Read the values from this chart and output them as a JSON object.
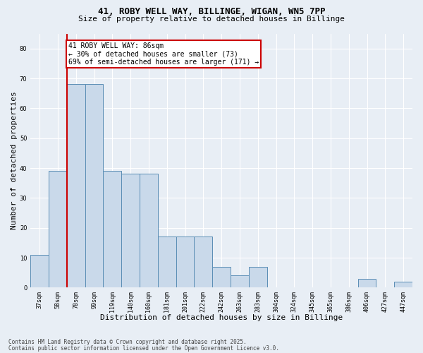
{
  "title": "41, ROBY WELL WAY, BILLINGE, WIGAN, WN5 7PP",
  "subtitle": "Size of property relative to detached houses in Billinge",
  "xlabel": "Distribution of detached houses by size in Billinge",
  "ylabel": "Number of detached properties",
  "categories": [
    "37sqm",
    "58sqm",
    "78sqm",
    "99sqm",
    "119sqm",
    "140sqm",
    "160sqm",
    "181sqm",
    "201sqm",
    "222sqm",
    "242sqm",
    "263sqm",
    "283sqm",
    "304sqm",
    "324sqm",
    "345sqm",
    "365sqm",
    "386sqm",
    "406sqm",
    "427sqm",
    "447sqm"
  ],
  "values": [
    11,
    39,
    68,
    68,
    39,
    38,
    38,
    17,
    17,
    17,
    7,
    4,
    7,
    0,
    0,
    0,
    0,
    0,
    3,
    0,
    2
  ],
  "bar_color": "#c9d9ea",
  "bar_edge_color": "#5a8db5",
  "property_line_x": 1.5,
  "annotation_text": "41 ROBY WELL WAY: 86sqm\n← 30% of detached houses are smaller (73)\n69% of semi-detached houses are larger (171) →",
  "annotation_box_color": "#ffffff",
  "annotation_box_edge_color": "#cc0000",
  "vline_color": "#cc0000",
  "background_color": "#e8eef5",
  "grid_color": "#ffffff",
  "ylim": [
    0,
    85
  ],
  "yticks": [
    0,
    10,
    20,
    30,
    40,
    50,
    60,
    70,
    80
  ],
  "footer_line1": "Contains HM Land Registry data © Crown copyright and database right 2025.",
  "footer_line2": "Contains public sector information licensed under the Open Government Licence v3.0.",
  "title_fontsize": 9,
  "subtitle_fontsize": 8,
  "tick_fontsize": 6,
  "label_fontsize": 8,
  "annotation_fontsize": 7
}
